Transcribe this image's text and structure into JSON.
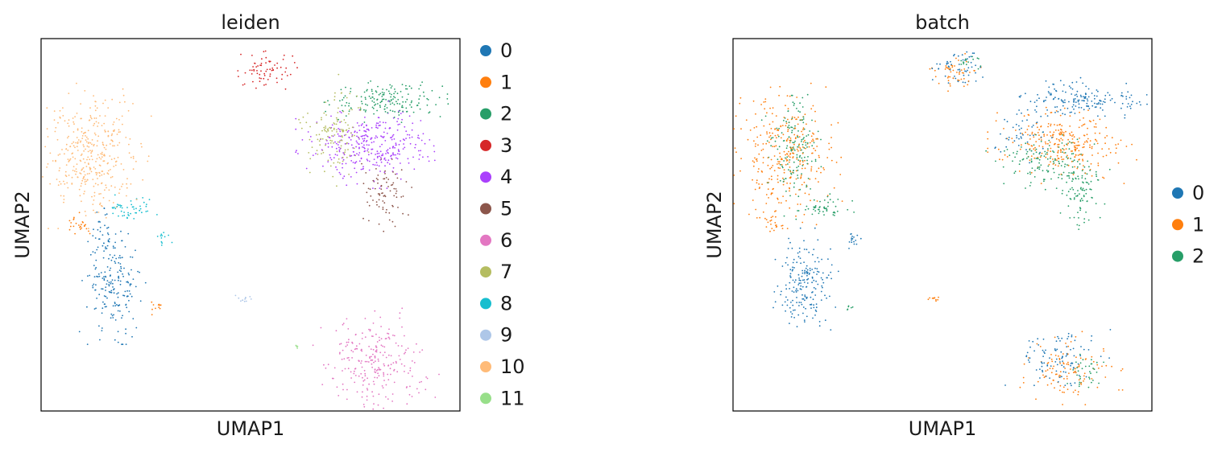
{
  "figure": {
    "panels": [
      {
        "title": "leiden",
        "xlabel": "UMAP1",
        "ylabel": "UMAP2",
        "legend": [
          {
            "label": "0",
            "color": "#1f77b4"
          },
          {
            "label": "1",
            "color": "#ff7f0e"
          },
          {
            "label": "2",
            "color": "#279e68"
          },
          {
            "label": "3",
            "color": "#d62728"
          },
          {
            "label": "4",
            "color": "#aa40fc"
          },
          {
            "label": "5",
            "color": "#8c564b"
          },
          {
            "label": "6",
            "color": "#e377c2"
          },
          {
            "label": "7",
            "color": "#b5bd61"
          },
          {
            "label": "8",
            "color": "#17becf"
          },
          {
            "label": "9",
            "color": "#aec7e8"
          },
          {
            "label": "10",
            "color": "#ffbb78"
          },
          {
            "label": "11",
            "color": "#98df8a"
          }
        ]
      },
      {
        "title": "batch",
        "xlabel": "UMAP1",
        "ylabel": "UMAP2",
        "legend": [
          {
            "label": "0",
            "color": "#1f77b4"
          },
          {
            "label": "1",
            "color": "#ff7f0e"
          },
          {
            "label": "2",
            "color": "#279e68"
          }
        ]
      }
    ]
  },
  "chart_data": [
    {
      "type": "scatter",
      "title": "leiden",
      "xlabel": "UMAP1",
      "ylabel": "UMAP2",
      "xlim": [
        0,
        100
      ],
      "ylim": [
        0,
        100
      ],
      "ticks": false,
      "grid": false,
      "legend_position": "right",
      "series": [
        {
          "name": "0",
          "color": "#1f77b4",
          "count": 220,
          "regions": [
            {
              "x": 17.5,
              "y": 33.5,
              "sx": 3.2,
              "sy": 6.0,
              "w": 1.0
            },
            {
              "x": 14.5,
              "y": 45.5,
              "sx": 1.5,
              "sy": 3.5,
              "w": 0.25
            }
          ]
        },
        {
          "name": "1",
          "color": "#ff7f0e",
          "count": 35,
          "regions": [
            {
              "x": 9.0,
              "y": 50.0,
              "sx": 2.0,
              "sy": 1.5,
              "w": 0.7
            },
            {
              "x": 27.5,
              "y": 27.5,
              "sx": 0.8,
              "sy": 0.8,
              "w": 0.3
            }
          ]
        },
        {
          "name": "2",
          "color": "#279e68",
          "count": 170,
          "regions": [
            {
              "x": 83.0,
              "y": 83.5,
              "sx": 6.5,
              "sy": 2.3,
              "w": 1.0
            }
          ]
        },
        {
          "name": "3",
          "color": "#d62728",
          "count": 70,
          "regions": [
            {
              "x": 53.5,
              "y": 91.5,
              "sx": 3.0,
              "sy": 2.3,
              "w": 1.0
            }
          ]
        },
        {
          "name": "4",
          "color": "#aa40fc",
          "count": 330,
          "regions": [
            {
              "x": 79.0,
              "y": 71.5,
              "sx": 7.0,
              "sy": 4.5,
              "w": 1.0
            }
          ]
        },
        {
          "name": "5",
          "color": "#8c564b",
          "count": 80,
          "regions": [
            {
              "x": 82.5,
              "y": 59.0,
              "sx": 2.4,
              "sy": 4.5,
              "w": 1.0
            }
          ]
        },
        {
          "name": "6",
          "color": "#e377c2",
          "count": 250,
          "regions": [
            {
              "x": 80.0,
              "y": 12.5,
              "sx": 5.8,
              "sy": 5.8,
              "w": 1.0
            }
          ]
        },
        {
          "name": "7",
          "color": "#b5bd61",
          "count": 130,
          "regions": [
            {
              "x": 69.5,
              "y": 75.5,
              "sx": 3.8,
              "sy": 5.8,
              "w": 1.0
            }
          ]
        },
        {
          "name": "8",
          "color": "#17becf",
          "count": 60,
          "regions": [
            {
              "x": 22.0,
              "y": 54.5,
              "sx": 3.0,
              "sy": 1.5,
              "w": 0.8
            },
            {
              "x": 29.5,
              "y": 46.0,
              "sx": 0.9,
              "sy": 1.0,
              "w": 0.2
            }
          ]
        },
        {
          "name": "9",
          "color": "#aec7e8",
          "count": 12,
          "regions": [
            {
              "x": 48.5,
              "y": 30.0,
              "sx": 0.8,
              "sy": 0.6,
              "w": 1.0
            }
          ]
        },
        {
          "name": "10",
          "color": "#ffbb78",
          "count": 370,
          "regions": [
            {
              "x": 12.0,
              "y": 68.5,
              "sx": 5.5,
              "sy": 7.5,
              "w": 1.0
            }
          ]
        },
        {
          "name": "11",
          "color": "#98df8a",
          "count": 5,
          "regions": [
            {
              "x": 61.0,
              "y": 17.5,
              "sx": 0.4,
              "sy": 0.3,
              "w": 1.0
            }
          ]
        }
      ]
    },
    {
      "type": "scatter",
      "title": "batch",
      "xlabel": "UMAP1",
      "ylabel": "UMAP2",
      "xlim": [
        0,
        100
      ],
      "ylim": [
        0,
        100
      ],
      "ticks": false,
      "grid": false,
      "legend_position": "right",
      "series": [
        {
          "name": "0",
          "color": "#1f77b4",
          "count": 580,
          "regions": [
            {
              "x": 17.5,
              "y": 33.5,
              "sx": 3.2,
              "sy": 6.0,
              "w": 0.9
            },
            {
              "x": 83.0,
              "y": 83.5,
              "sx": 6.5,
              "sy": 2.3,
              "w": 0.8
            },
            {
              "x": 53.5,
              "y": 91.5,
              "sx": 3.0,
              "sy": 2.3,
              "w": 0.25
            },
            {
              "x": 78.0,
              "y": 14.5,
              "sx": 5.0,
              "sy": 3.8,
              "w": 0.45
            },
            {
              "x": 68.5,
              "y": 74.0,
              "sx": 3.0,
              "sy": 3.0,
              "w": 0.2
            },
            {
              "x": 29.0,
              "y": 46.0,
              "sx": 0.8,
              "sy": 0.9,
              "w": 0.08
            }
          ]
        },
        {
          "name": "1",
          "color": "#ff7f0e",
          "count": 780,
          "regions": [
            {
              "x": 12.0,
              "y": 68.5,
              "sx": 5.5,
              "sy": 7.5,
              "w": 1.0
            },
            {
              "x": 79.0,
              "y": 71.5,
              "sx": 7.0,
              "sy": 4.0,
              "w": 0.85
            },
            {
              "x": 80.0,
              "y": 11.5,
              "sx": 5.0,
              "sy": 5.0,
              "w": 0.35
            },
            {
              "x": 53.5,
              "y": 91.0,
              "sx": 2.5,
              "sy": 2.0,
              "w": 0.15
            },
            {
              "x": 9.0,
              "y": 50.0,
              "sx": 1.5,
              "sy": 1.2,
              "w": 0.06
            },
            {
              "x": 48.5,
              "y": 30.0,
              "sx": 0.8,
              "sy": 0.6,
              "w": 0.03
            }
          ]
        },
        {
          "name": "2",
          "color": "#279e68",
          "count": 470,
          "regions": [
            {
              "x": 14.5,
              "y": 71.0,
              "sx": 3.0,
              "sy": 7.5,
              "w": 0.8
            },
            {
              "x": 82.5,
              "y": 59.0,
              "sx": 2.4,
              "sy": 4.5,
              "w": 0.45
            },
            {
              "x": 76.0,
              "y": 67.0,
              "sx": 6.0,
              "sy": 3.5,
              "w": 0.7
            },
            {
              "x": 84.5,
              "y": 10.0,
              "sx": 1.8,
              "sy": 2.5,
              "w": 0.18
            },
            {
              "x": 22.0,
              "y": 54.5,
              "sx": 2.8,
              "sy": 1.5,
              "w": 0.25
            },
            {
              "x": 56.0,
              "y": 94.0,
              "sx": 1.5,
              "sy": 1.0,
              "w": 0.08
            },
            {
              "x": 27.5,
              "y": 27.5,
              "sx": 0.5,
              "sy": 0.5,
              "w": 0.03
            }
          ]
        }
      ]
    }
  ]
}
